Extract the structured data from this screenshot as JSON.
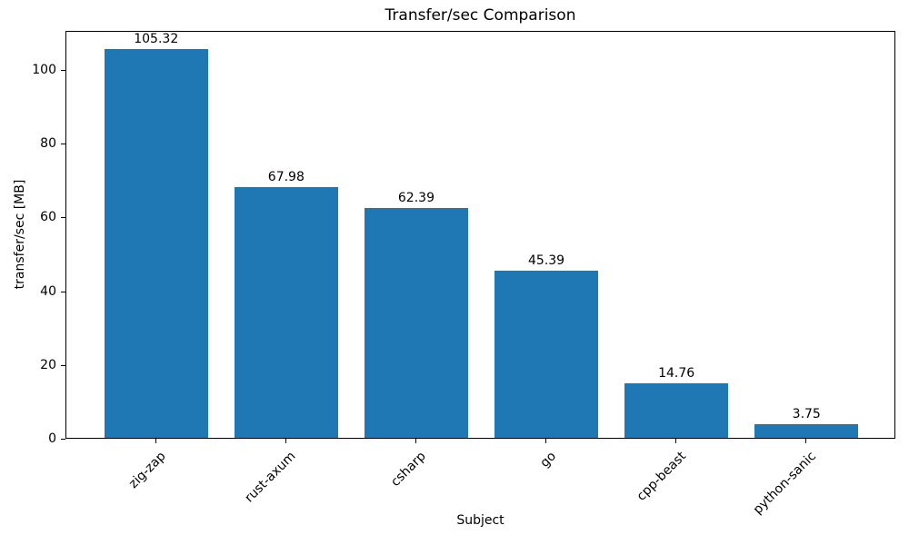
{
  "chart_data": {
    "type": "bar",
    "title": "Transfer/sec Comparison",
    "xlabel": "Subject",
    "ylabel": "transfer/sec [MB]",
    "categories": [
      "zig-zap",
      "rust-axum",
      "csharp",
      "go",
      "cpp-beast",
      "python-sanic"
    ],
    "values": [
      105.32,
      67.98,
      62.39,
      45.39,
      14.76,
      3.75
    ],
    "value_labels": [
      "105.32",
      "67.98",
      "62.39",
      "45.39",
      "14.76",
      "3.75"
    ],
    "bar_color": "#1f77b4",
    "ylim": [
      0,
      110.6
    ],
    "yticks": [
      0,
      20,
      40,
      60,
      80,
      100
    ],
    "x_tick_rotation_deg": 45,
    "grid": false,
    "legend": "none",
    "spine_color": "#000000",
    "text_color": "#000000",
    "background_color": "#ffffff"
  }
}
